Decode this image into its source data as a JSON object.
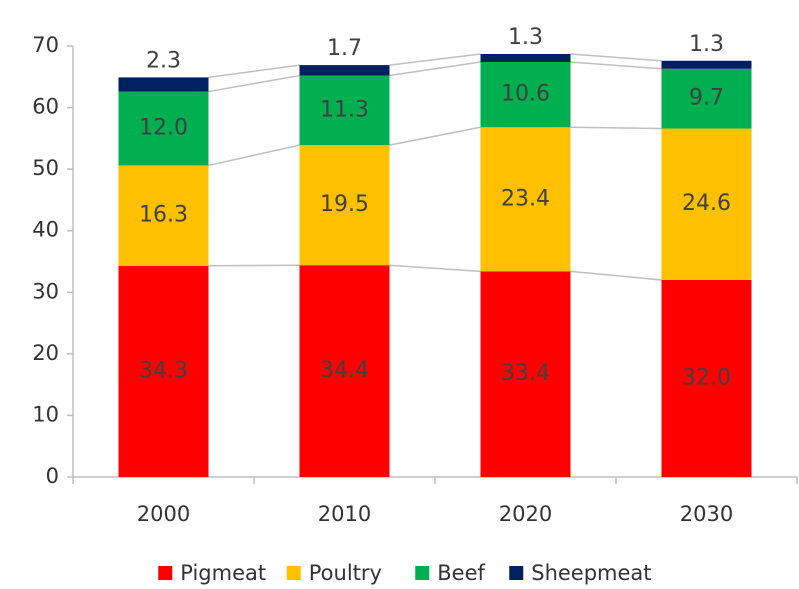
{
  "chart_data": {
    "type": "stacked_bar",
    "categories": [
      "2000",
      "2010",
      "2020",
      "2030"
    ],
    "series": [
      {
        "name": "Pigmeat",
        "color": "#ff0000",
        "values": [
          34.3,
          34.4,
          33.4,
          32.0
        ],
        "value_labels": [
          "34.3",
          "34.4",
          "33.4",
          "32.0"
        ]
      },
      {
        "name": "Poultry",
        "color": "#ffc000",
        "values": [
          16.3,
          19.5,
          23.4,
          24.6
        ],
        "value_labels": [
          "16.3",
          "19.5",
          "23.4",
          "24.6"
        ]
      },
      {
        "name": "Beef",
        "color": "#00b050",
        "values": [
          12.0,
          11.3,
          10.6,
          9.7
        ],
        "value_labels": [
          "12.0",
          "11.3",
          "10.6",
          "9.7"
        ]
      },
      {
        "name": "Sheepmeat",
        "color": "#002060",
        "values": [
          2.3,
          1.7,
          1.3,
          1.3
        ],
        "value_labels": [
          "2.3",
          "1.7",
          "1.3",
          "1.3"
        ]
      }
    ],
    "ylim": [
      0,
      70
    ],
    "yticks": [
      0,
      10,
      20,
      30,
      40,
      50,
      60,
      70
    ],
    "grid": false,
    "legend": "bottom"
  }
}
